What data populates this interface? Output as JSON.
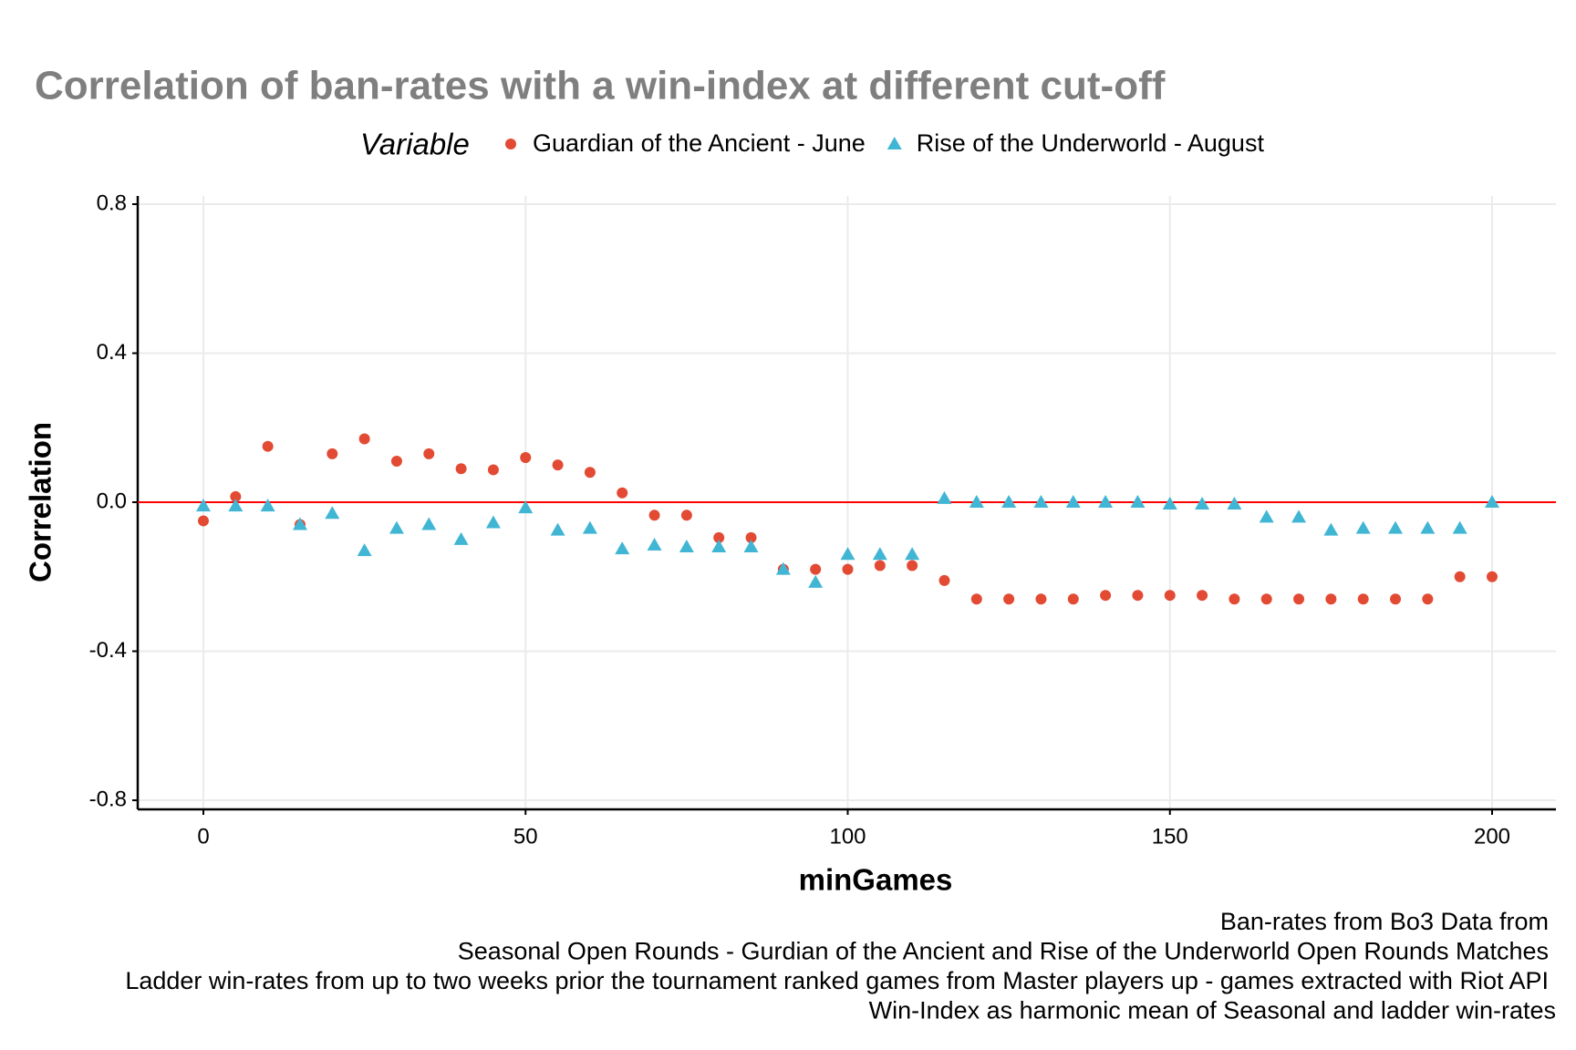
{
  "chart_data": {
    "type": "scatter",
    "title": "Correlation of ban-rates with a win-index at different cut-off",
    "legend_title": "Variable",
    "x_label": "minGames",
    "y_label": "Correlation",
    "caption": [
      "Ban-rates from Bo3 Data from",
      "Seasonal Open Rounds - Gurdian of the Ancient and Rise of the Underworld Open Rounds Matches",
      "Ladder win-rates from up to two weeks prior the tournament ranked games from Master players up - games extracted with Riot API",
      "Win-Index as harmonic mean of Seasonal and ladder win-rates"
    ],
    "x": [
      0,
      5,
      10,
      15,
      20,
      25,
      30,
      35,
      40,
      45,
      50,
      55,
      60,
      65,
      70,
      75,
      80,
      85,
      90,
      95,
      100,
      105,
      110,
      115,
      120,
      125,
      130,
      135,
      140,
      145,
      150,
      155,
      160,
      165,
      170,
      175,
      180,
      185,
      190,
      195,
      200
    ],
    "series": [
      {
        "name": "Guardian of the Ancient - June",
        "color": "#e34a33",
        "marker": "circle",
        "values": [
          -0.05,
          0.015,
          0.15,
          -0.06,
          0.13,
          0.17,
          0.11,
          0.13,
          0.09,
          0.087,
          0.12,
          0.1,
          0.08,
          0.025,
          -0.035,
          -0.035,
          -0.095,
          -0.095,
          -0.18,
          -0.18,
          -0.18,
          -0.17,
          -0.17,
          -0.21,
          -0.26,
          -0.26,
          -0.26,
          -0.26,
          -0.25,
          -0.25,
          -0.25,
          -0.25,
          -0.26,
          -0.26,
          -0.26,
          -0.26,
          -0.26,
          -0.26,
          -0.26,
          -0.2,
          -0.2
        ]
      },
      {
        "name": "Rise of the Underworld - August",
        "color": "#41b6d4",
        "marker": "triangle",
        "values": [
          -0.01,
          -0.01,
          -0.01,
          -0.06,
          -0.03,
          -0.13,
          -0.07,
          -0.06,
          -0.1,
          -0.055,
          -0.015,
          -0.075,
          -0.07,
          -0.125,
          -0.115,
          -0.12,
          -0.12,
          -0.12,
          -0.18,
          -0.215,
          -0.14,
          -0.14,
          -0.14,
          0.01,
          0,
          0,
          0,
          0,
          0,
          0,
          -0.005,
          -0.005,
          -0.005,
          -0.04,
          -0.04,
          -0.075,
          -0.07,
          -0.07,
          -0.07,
          -0.07,
          0
        ]
      }
    ],
    "reference_line": {
      "value": 0,
      "color": "#ff0000"
    },
    "xlim": [
      0,
      200
    ],
    "xticks": [
      0,
      50,
      100,
      150,
      200
    ],
    "ylim": [
      -0.8,
      0.8
    ],
    "yticks": [
      -0.8,
      -0.4,
      {
        "value": 0,
        "label": "0.0"
      },
      0.4,
      0.8
    ],
    "grid": true
  }
}
